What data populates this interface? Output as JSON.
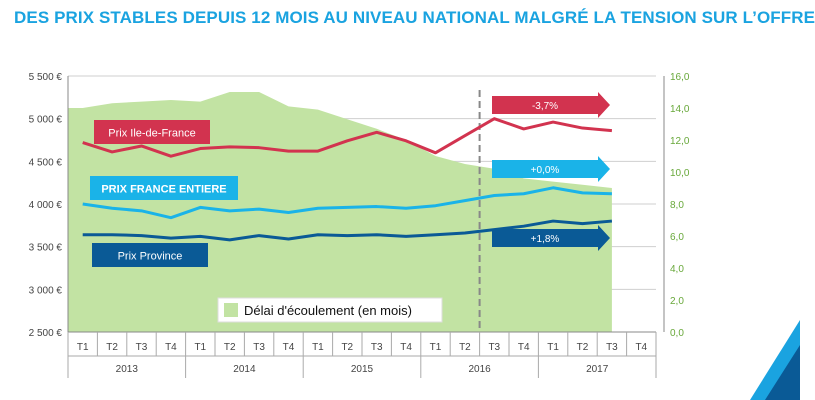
{
  "title": "DES PRIX STABLES DEPUIS 12 MOIS AU NIVEAU NATIONAL MALGRÉ LA TENSION SUR L’OFFRE",
  "colors": {
    "title": "#1aa3e0",
    "area": "#c2e3a3",
    "idf": "#d2334f",
    "france": "#1ab3e8",
    "province": "#0a5a96",
    "axis_right": "#68a83a",
    "grid": "#cfcfcf"
  },
  "chart_data": {
    "type": "line",
    "categories": [
      "T1",
      "T2",
      "T3",
      "T4",
      "T1",
      "T2",
      "T3",
      "T4",
      "T1",
      "T2",
      "T3",
      "T4",
      "T1",
      "T2",
      "T3",
      "T4",
      "T1",
      "T2",
      "T3",
      "T4"
    ],
    "years": [
      {
        "label": "2013",
        "start": 0,
        "end": 3
      },
      {
        "label": "2014",
        "start": 4,
        "end": 7
      },
      {
        "label": "2015",
        "start": 8,
        "end": 11
      },
      {
        "label": "2016",
        "start": 12,
        "end": 15
      },
      {
        "label": "2017",
        "start": 16,
        "end": 19
      }
    ],
    "y_left": {
      "min": 2500,
      "max": 5500,
      "step": 500,
      "ticks": [
        "2 500 €",
        "3 000 €",
        "3 500 €",
        "4 000 €",
        "4 500 €",
        "5 000 €",
        "5 500 €"
      ]
    },
    "y_right": {
      "min": 0,
      "max": 16,
      "step": 2,
      "ticks": [
        "0,0",
        "2,0",
        "4,0",
        "6,0",
        "8,0",
        "10,0",
        "12,0",
        "14,0",
        "16,0"
      ]
    },
    "grid": true,
    "series": [
      {
        "name": "Prix Ile-de-France",
        "key": "idf",
        "axis": "left",
        "values": [
          4720,
          4610,
          4680,
          4560,
          4650,
          4670,
          4660,
          4620,
          4620,
          4740,
          4840,
          4740,
          4600,
          4800,
          5000,
          4880,
          4960,
          4890,
          4860,
          null
        ]
      },
      {
        "name": "PRIX FRANCE ENTIERE",
        "key": "france",
        "axis": "left",
        "values": [
          4000,
          3950,
          3920,
          3840,
          3960,
          3920,
          3940,
          3900,
          3950,
          3960,
          3970,
          3950,
          3980,
          4040,
          4100,
          4120,
          4190,
          4130,
          4120,
          null
        ]
      },
      {
        "name": "Prix Province",
        "key": "province",
        "axis": "left",
        "values": [
          3640,
          3640,
          3630,
          3600,
          3620,
          3580,
          3630,
          3590,
          3640,
          3630,
          3640,
          3620,
          3640,
          3660,
          3700,
          3740,
          3800,
          3770,
          3800,
          null
        ]
      },
      {
        "name": "Délai d'écoulement (en mois)",
        "key": "delai",
        "axis": "right",
        "type": "area",
        "values": [
          14.0,
          14.3,
          14.4,
          14.5,
          14.4,
          15.0,
          15.0,
          14.1,
          13.9,
          13.3,
          12.7,
          12.0,
          11.0,
          10.5,
          10.2,
          9.6,
          9.4,
          9.2,
          9.0,
          null
        ]
      }
    ],
    "labels": {
      "idf": "Prix Ile-de-France",
      "france": "PRIX FRANCE ENTIERE",
      "province": "Prix Province",
      "area": "Délai d'écoulement (en mois)"
    },
    "annotations": [
      {
        "text": "-3,7%",
        "series": "idf"
      },
      {
        "text": "+0,0%",
        "series": "france"
      },
      {
        "text": "+1,8%",
        "series": "province"
      }
    ],
    "reference_line_at_category": 14
  }
}
